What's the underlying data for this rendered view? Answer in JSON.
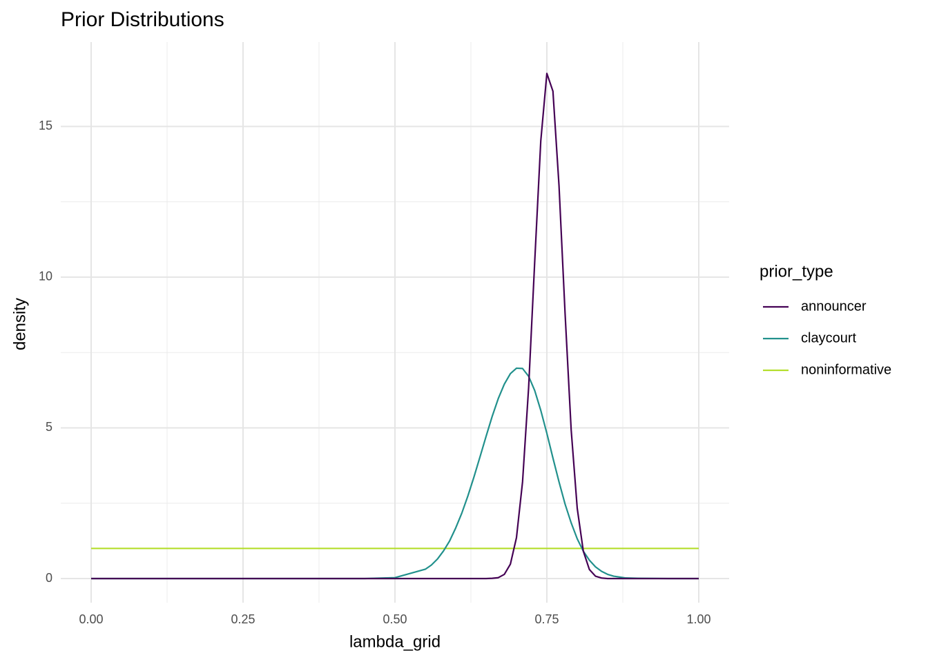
{
  "chart_data": {
    "type": "line",
    "title": "Prior Distributions",
    "x_label": "lambda_grid",
    "y_label": "density",
    "legend_title": "prior_type",
    "x": [
      0,
      0.1,
      0.2,
      0.3,
      0.4,
      0.45,
      0.5,
      0.55,
      0.56,
      0.57,
      0.58,
      0.59,
      0.6,
      0.61,
      0.62,
      0.63,
      0.64,
      0.65,
      0.66,
      0.67,
      0.68,
      0.69,
      0.7,
      0.71,
      0.72,
      0.73,
      0.74,
      0.75,
      0.76,
      0.77,
      0.78,
      0.79,
      0.8,
      0.81,
      0.82,
      0.83,
      0.84,
      0.85,
      0.86,
      0.87,
      0.88,
      0.9,
      0.95,
      1
    ],
    "series": [
      {
        "name": "announcer",
        "color": "#440154",
        "values": [
          0,
          0,
          0,
          0,
          0,
          0,
          0,
          0,
          0,
          0,
          0,
          0,
          0,
          0,
          0,
          0,
          0,
          0,
          0.01,
          0.03,
          0.14,
          0.48,
          1.36,
          3.21,
          6.34,
          10.51,
          14.52,
          16.76,
          16.17,
          13.04,
          8.79,
          4.94,
          2.33,
          0.91,
          0.3,
          0.08,
          0.02,
          0,
          0,
          0,
          0,
          0,
          0,
          0
        ]
      },
      {
        "name": "claycourt",
        "color": "#21908C",
        "values": [
          0,
          0,
          0,
          0,
          0,
          0,
          0.03,
          0.31,
          0.45,
          0.65,
          0.92,
          1.25,
          1.68,
          2.17,
          2.74,
          3.37,
          4.04,
          4.72,
          5.38,
          5.97,
          6.45,
          6.8,
          6.98,
          6.97,
          6.71,
          6.24,
          5.58,
          4.82,
          4.0,
          3.21,
          2.47,
          1.85,
          1.32,
          0.91,
          0.61,
          0.39,
          0.24,
          0.14,
          0.08,
          0.05,
          0.02,
          0.01,
          0,
          0
        ]
      },
      {
        "name": "noninformative",
        "color": "#B4DE2C",
        "values": [
          1,
          1,
          1,
          1,
          1,
          1,
          1,
          1,
          1,
          1,
          1,
          1,
          1,
          1,
          1,
          1,
          1,
          1,
          1,
          1,
          1,
          1,
          1,
          1,
          1,
          1,
          1,
          1,
          1,
          1,
          1,
          1,
          1,
          1,
          1,
          1,
          1,
          1,
          1,
          1,
          1,
          1,
          1,
          1
        ]
      }
    ],
    "xlim": [
      -0.05,
      1.05
    ],
    "ylim": [
      -0.8,
      17.8
    ],
    "xticks": [
      {
        "value": 0,
        "label": "0.00"
      },
      {
        "value": 0.25,
        "label": "0.25"
      },
      {
        "value": 0.5,
        "label": "0.50"
      },
      {
        "value": 0.75,
        "label": "0.75"
      },
      {
        "value": 1,
        "label": "1.00"
      }
    ],
    "yticks": [
      0,
      5,
      10,
      15
    ],
    "x_minor_ticks": [
      0.125,
      0.375,
      0.625,
      0.875
    ],
    "y_minor_ticks": [
      2.5,
      7.5,
      12.5
    ],
    "grid": true,
    "legend_position": "right"
  }
}
